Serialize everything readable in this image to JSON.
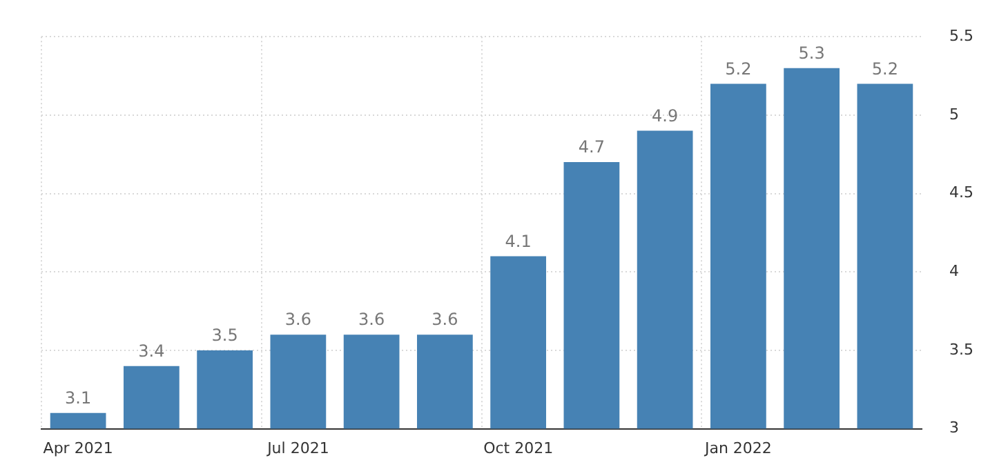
{
  "chart_data": {
    "type": "bar",
    "categories": [
      "Apr 2021",
      null,
      null,
      "Jul 2021",
      null,
      null,
      "Oct 2021",
      null,
      null,
      "Jan 2022",
      null,
      null
    ],
    "values": [
      3.1,
      3.4,
      3.5,
      3.6,
      3.6,
      3.6,
      4.1,
      4.7,
      4.9,
      5.2,
      5.3,
      5.2
    ],
    "color": "#4682b4",
    "ylim": [
      3,
      5.5
    ],
    "yticks": [
      3,
      3.5,
      4,
      4.5,
      5,
      5.5
    ],
    "grid": true,
    "data_labels": true,
    "legend": false
  }
}
